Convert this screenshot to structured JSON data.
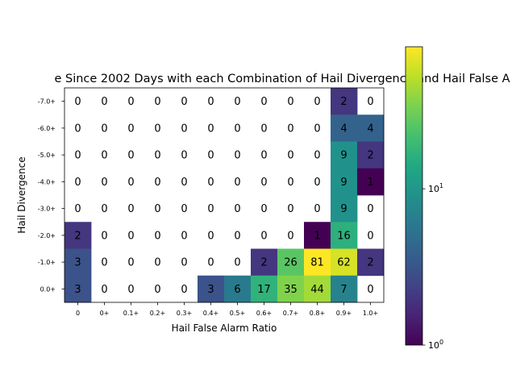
{
  "chart_data": {
    "type": "heatmap",
    "title": "e Since 2002 Days with each Combination of Hail Divergence and Hail False A",
    "xlabel": "Hail False Alarm Ratio",
    "ylabel": "Hail Divergence",
    "x_categories": [
      "0",
      "0+",
      "0.1+",
      "0.2+",
      "0.3+",
      "0.4+",
      "0.5+",
      "0.6+",
      "0.7+",
      "0.8+",
      "0.9+",
      "1.0+"
    ],
    "x_tick_labels": [
      "0",
      "0+",
      "0.1+",
      "0.2+",
      "0.3+",
      "0.4+",
      "0.5+",
      "0.6+",
      "0.7+",
      "0.8+",
      "0.9+",
      "1.0+"
    ],
    "y_categories": [
      "-7.0+",
      "-6.0+",
      "-5.0+",
      "-4.0+",
      "-3.0+",
      "-2.0+",
      "-1.0+",
      "0.0+"
    ],
    "values": [
      [
        0,
        0,
        0,
        0,
        0,
        0,
        0,
        0,
        0,
        0,
        2,
        0
      ],
      [
        0,
        0,
        0,
        0,
        0,
        0,
        0,
        0,
        0,
        0,
        4,
        4
      ],
      [
        0,
        0,
        0,
        0,
        0,
        0,
        0,
        0,
        0,
        0,
        9,
        2
      ],
      [
        0,
        0,
        0,
        0,
        0,
        0,
        0,
        0,
        0,
        0,
        9,
        1
      ],
      [
        0,
        0,
        0,
        0,
        0,
        0,
        0,
        0,
        0,
        0,
        9,
        0
      ],
      [
        2,
        0,
        0,
        0,
        0,
        0,
        0,
        0,
        0,
        1,
        16,
        0
      ],
      [
        3,
        0,
        0,
        0,
        0,
        0,
        0,
        2,
        26,
        81,
        62,
        2
      ],
      [
        3,
        0,
        0,
        0,
        0,
        3,
        6,
        17,
        35,
        44,
        7,
        0
      ]
    ],
    "colorbar": {
      "scale": "log",
      "colormap": "viridis",
      "vmin": 1,
      "vmax": 81,
      "ticks": [
        {
          "value": 1,
          "base": "10",
          "exp": "0"
        },
        {
          "value": 10,
          "base": "10",
          "exp": "1"
        }
      ]
    },
    "zero_cells": "blank (white)"
  }
}
